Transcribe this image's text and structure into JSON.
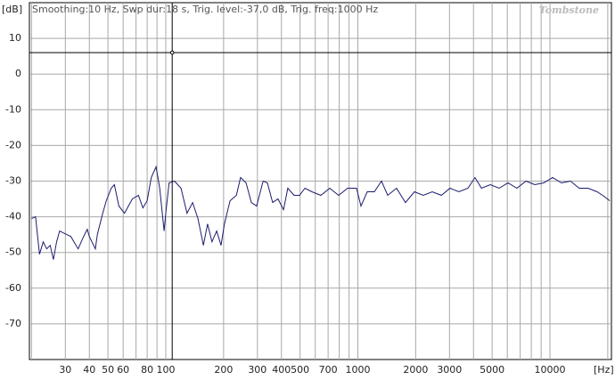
{
  "chart_data": {
    "type": "line",
    "subtitle": "Smoothing:10 Hz, Swp dur:18 s, Trig. level:-37,0 dB, Trig. freq:1000 Hz",
    "watermark": "Tombstone",
    "y_label": "[dB]",
    "x_label": "[Hz]",
    "log_x": true,
    "xlim": [
      19.5,
      20900
    ],
    "ylim": [
      -80,
      20
    ],
    "xticks": [
      30,
      40,
      50,
      60,
      80,
      100,
      200,
      300,
      400,
      500,
      700,
      1000,
      2000,
      3000,
      5000,
      10000
    ],
    "x_minor_grid": [
      20,
      70,
      90,
      600,
      800,
      900,
      4000,
      6000,
      7000,
      8000,
      9000,
      20000
    ],
    "yticks": [
      10,
      0,
      -10,
      -20,
      -30,
      -40,
      -50,
      -60,
      -70
    ],
    "grid": true,
    "cursor": {
      "x": 108,
      "y": 6
    },
    "x": [
      20,
      21,
      22,
      23,
      24,
      25,
      26,
      27,
      28,
      30.5,
      32,
      35,
      37,
      39,
      40,
      43,
      44,
      47,
      49,
      52,
      54,
      57,
      61,
      67,
      72,
      76,
      80,
      84,
      89,
      93,
      98,
      100,
      104,
      111,
      120,
      129,
      138,
      147,
      157,
      165,
      174,
      184,
      194,
      202,
      216,
      233,
      245,
      262,
      279,
      297,
      321,
      338,
      360,
      384,
      410,
      432,
      466,
      497,
      530,
      577,
      641,
      714,
      794,
      885,
      984,
      1038,
      1119,
      1219,
      1327,
      1430,
      1590,
      1770,
      1970,
      2190,
      2440,
      2720,
      3020,
      3360,
      3740,
      4070,
      4400,
      4890,
      5440,
      6050,
      6730,
      7500,
      8340,
      9290,
      10330,
      11480,
      12800,
      14200,
      15800,
      17600,
      18800,
      20500
    ],
    "series": [
      {
        "color": "#1c1c6e",
        "values": [
          -40.5,
          -40,
          -50.5,
          -47,
          -49,
          -48,
          -52,
          -47,
          -44,
          -45,
          -45.5,
          -49,
          -46,
          -43.5,
          -45.5,
          -49,
          -45,
          -39,
          -35.5,
          -32,
          -31,
          -37,
          -39,
          -35,
          -34,
          -37.5,
          -35.5,
          -29,
          -26,
          -32,
          -44,
          -39,
          -30.5,
          -30,
          -32,
          -39,
          -36,
          -40.5,
          -48,
          -42,
          -47,
          -44,
          -48,
          -42,
          -35.5,
          -34,
          -29,
          -30.5,
          -36,
          -37,
          -30,
          -30.5,
          -36,
          -35,
          -38,
          -32,
          -34,
          -34,
          -32,
          -33,
          -34,
          -32,
          -34,
          -32,
          -32,
          -37,
          -33,
          -33,
          -30,
          -34,
          -32,
          -36,
          -33,
          -34,
          -33,
          -34,
          -32,
          -33,
          -32,
          -29,
          -32,
          -31,
          -32,
          -30.5,
          -32,
          -30,
          -31,
          -30.5,
          -29,
          -30.5,
          -30,
          -32,
          -32,
          -33,
          -34,
          -35.5
        ]
      }
    ]
  }
}
